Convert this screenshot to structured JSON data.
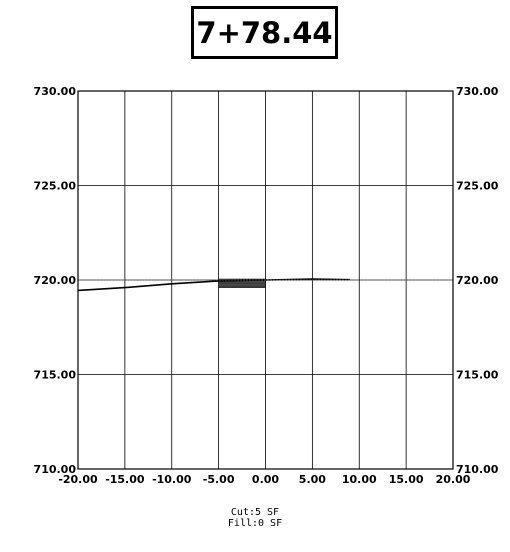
{
  "station_label": "7+78.44",
  "chart_data": {
    "type": "line",
    "title": "7+78.44",
    "xlabel": "",
    "ylabel": "",
    "xlim": [
      -20,
      20
    ],
    "ylim": [
      710,
      730
    ],
    "x_ticks": [
      "-20.00",
      "-15.00",
      "-10.00",
      "-5.00",
      "0.00",
      "5.00",
      "10.00",
      "15.00",
      "20.00"
    ],
    "y_ticks": [
      "730.00",
      "725.00",
      "720.00",
      "715.00",
      "710.00"
    ],
    "grid": true,
    "series": [
      {
        "name": "",
        "x": [
          -20,
          -15,
          -10,
          -5,
          0,
          5,
          9
        ],
        "y": [
          719.45,
          719.6,
          719.8,
          719.95,
          720.0,
          720.05,
          720.02
        ]
      },
      {
        "name": "",
        "x": [
          -20,
          -15,
          -10,
          -5,
          0,
          5,
          10,
          15,
          20
        ],
        "y": [
          720.0,
          720.0,
          720.0,
          720.0,
          720.0,
          720.0,
          720.0,
          720.0,
          720.0
        ]
      }
    ],
    "cut_region": {
      "x": [
        -5,
        0
      ],
      "y": [
        719.6,
        720.05
      ]
    }
  },
  "volumes": {
    "cut": "Cut:5 SF",
    "fill": "Fill:0 SF"
  }
}
